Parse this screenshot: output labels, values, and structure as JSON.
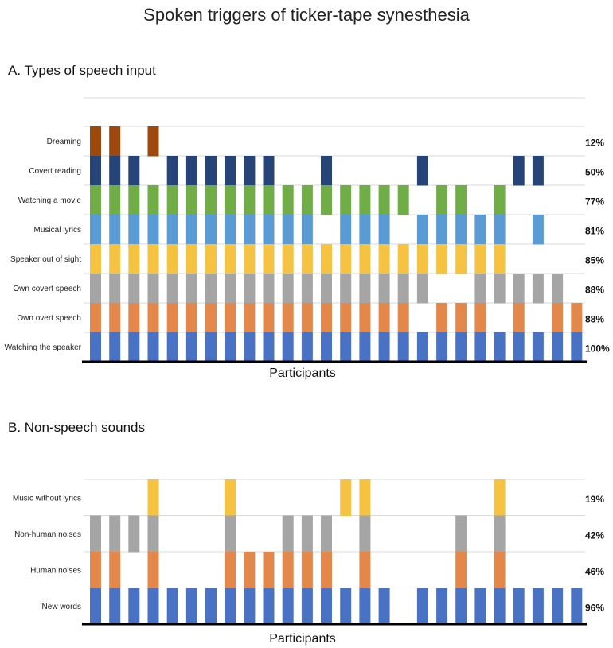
{
  "title": "Spoken triggers of ticker-tape synesthesia",
  "chart_data": [
    {
      "type": "bar",
      "title": "A. Types of speech input",
      "xlabel": "Participants",
      "ylabel": "",
      "participants": 26,
      "grid": true,
      "rows": [
        {
          "name": "Dreaming",
          "percent": "12%",
          "color": "#9E480E",
          "values": [
            1,
            1,
            0,
            1,
            0,
            0,
            0,
            0,
            0,
            0,
            0,
            0,
            0,
            0,
            0,
            0,
            0,
            0,
            0,
            0,
            0,
            0,
            0,
            0,
            0,
            0
          ]
        },
        {
          "name": "Covert reading",
          "percent": "50%",
          "color": "#264478",
          "values": [
            1,
            1,
            1,
            0,
            1,
            1,
            1,
            1,
            1,
            1,
            0,
            0,
            1,
            0,
            0,
            0,
            0,
            1,
            0,
            0,
            0,
            0,
            1,
            1,
            0,
            0
          ]
        },
        {
          "name": "Watching a movie",
          "percent": "77%",
          "color": "#70AD47",
          "values": [
            1,
            1,
            1,
            1,
            1,
            1,
            1,
            1,
            1,
            1,
            1,
            1,
            1,
            1,
            1,
            1,
            1,
            0,
            1,
            1,
            0,
            1,
            0,
            0,
            0,
            0
          ]
        },
        {
          "name": "Musical lyrics",
          "percent": "81%",
          "color": "#5B9BD5",
          "values": [
            1,
            1,
            1,
            1,
            1,
            1,
            1,
            1,
            1,
            1,
            1,
            1,
            0,
            1,
            1,
            1,
            0,
            1,
            1,
            1,
            1,
            1,
            0,
            1,
            0,
            0
          ]
        },
        {
          "name": "Speaker out of sight",
          "percent": "85%",
          "color": "#F5C242",
          "values": [
            1,
            1,
            1,
            1,
            1,
            1,
            1,
            1,
            1,
            1,
            1,
            1,
            1,
            1,
            1,
            1,
            1,
            1,
            1,
            1,
            1,
            1,
            0,
            0,
            0,
            0
          ]
        },
        {
          "name": "Own covert speech",
          "percent": "88%",
          "color": "#A5A5A5",
          "values": [
            1,
            1,
            1,
            1,
            1,
            1,
            1,
            1,
            1,
            1,
            1,
            1,
            1,
            1,
            1,
            1,
            1,
            1,
            0,
            0,
            1,
            1,
            1,
            1,
            1,
            0
          ]
        },
        {
          "name": "Own overt speech",
          "percent": "88%",
          "color": "#E3884A",
          "values": [
            1,
            1,
            1,
            1,
            1,
            1,
            1,
            1,
            1,
            1,
            1,
            1,
            1,
            1,
            1,
            1,
            1,
            0,
            1,
            1,
            1,
            0,
            1,
            0,
            1,
            1
          ]
        },
        {
          "name": "Watching the speaker",
          "percent": "100%",
          "color": "#4A72C4",
          "values": [
            1,
            1,
            1,
            1,
            1,
            1,
            1,
            1,
            1,
            1,
            1,
            1,
            1,
            1,
            1,
            1,
            1,
            1,
            1,
            1,
            1,
            1,
            1,
            1,
            1,
            1
          ]
        }
      ]
    },
    {
      "type": "bar",
      "title": "B. Non-speech sounds",
      "xlabel": "Participants",
      "ylabel": "",
      "participants": 26,
      "grid": true,
      "rows": [
        {
          "name": "Music without lyrics",
          "percent": "19%",
          "color": "#F5C242",
          "values": [
            0,
            0,
            0,
            1,
            0,
            0,
            0,
            1,
            0,
            0,
            0,
            0,
            0,
            1,
            1,
            0,
            0,
            0,
            0,
            0,
            0,
            1,
            0,
            0,
            0,
            0
          ]
        },
        {
          "name": "Non-human noises",
          "percent": "42%",
          "color": "#A5A5A5",
          "values": [
            1,
            1,
            1,
            1,
            0,
            0,
            0,
            1,
            0,
            0,
            1,
            1,
            1,
            0,
            1,
            0,
            0,
            0,
            0,
            1,
            0,
            1,
            0,
            0,
            0,
            0
          ]
        },
        {
          "name": "Human noises",
          "percent": "46%",
          "color": "#E3884A",
          "values": [
            1,
            1,
            0,
            1,
            0,
            0,
            0,
            1,
            1,
            1,
            1,
            1,
            1,
            0,
            1,
            0,
            0,
            0,
            0,
            1,
            0,
            1,
            0,
            0,
            0,
            0
          ]
        },
        {
          "name": "New words",
          "percent": "96%",
          "color": "#4A72C4",
          "values": [
            1,
            1,
            1,
            1,
            1,
            1,
            1,
            1,
            1,
            1,
            1,
            1,
            1,
            1,
            1,
            1,
            0,
            1,
            1,
            1,
            1,
            1,
            1,
            1,
            1,
            1
          ]
        }
      ]
    }
  ]
}
